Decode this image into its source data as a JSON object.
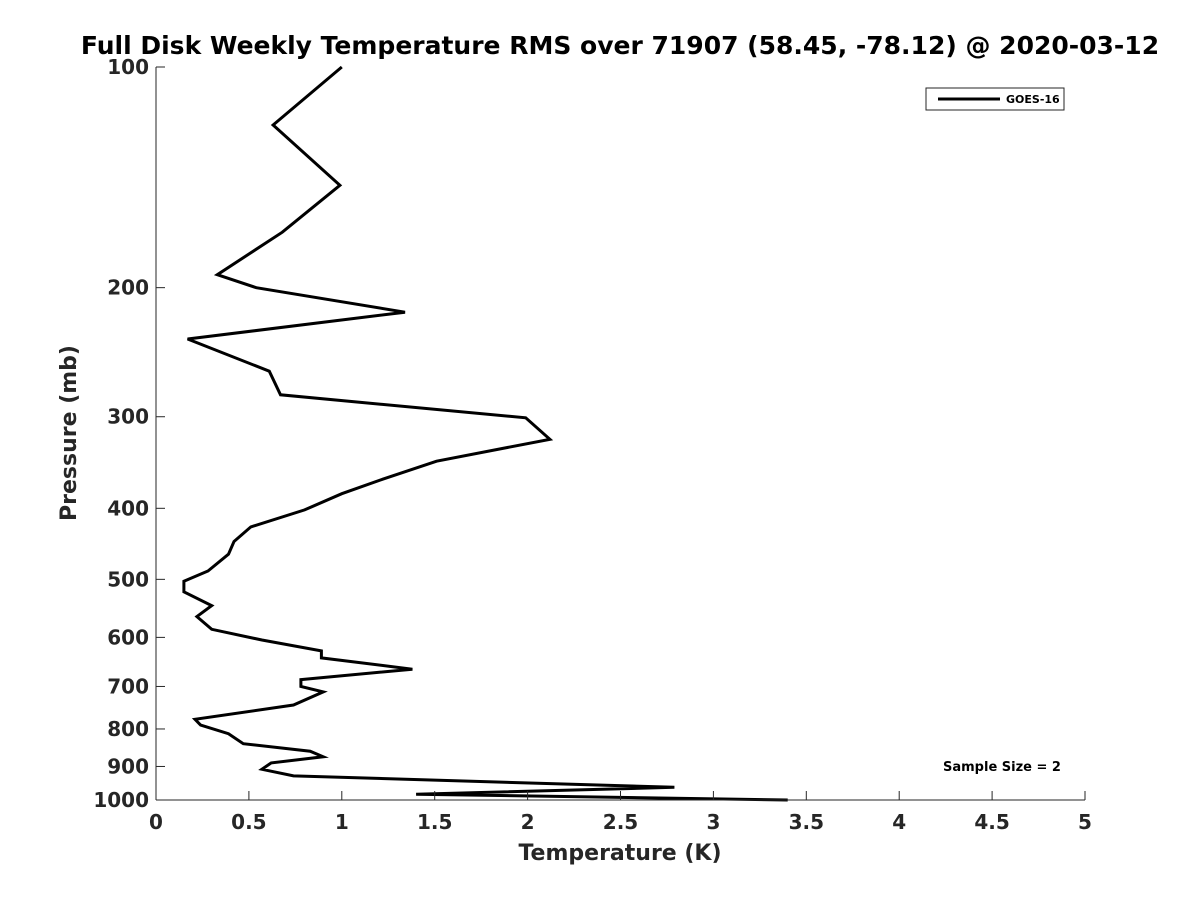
{
  "chart_data": {
    "type": "line",
    "title": "Full Disk Weekly Temperature RMS over 71907 (58.45, -78.12) @ 2020-03-12",
    "xlabel": "Temperature (K)",
    "ylabel": "Pressure (mb)",
    "xlim": [
      0,
      5
    ],
    "ylim": [
      100,
      1000
    ],
    "yscale": "log",
    "y_reversed": true,
    "grid": false,
    "legend_position": "top-right",
    "x_ticks": [
      "0",
      "0.5",
      "1",
      "1.5",
      "2",
      "2.5",
      "3",
      "3.5",
      "4",
      "4.5",
      "5"
    ],
    "y_ticks": [
      "100",
      "200",
      "300",
      "400",
      "500",
      "600",
      "700",
      "800",
      "900",
      "1000"
    ],
    "annotation": "Sample Size = 2",
    "series": [
      {
        "name": "GOES-16",
        "color": "#000000",
        "points": [
          [
            1.0,
            100
          ],
          [
            0.63,
            120
          ],
          [
            0.99,
            145
          ],
          [
            0.68,
            168
          ],
          [
            0.33,
            192
          ],
          [
            0.54,
            200
          ],
          [
            1.34,
            216
          ],
          [
            0.17,
            235
          ],
          [
            0.61,
            260
          ],
          [
            0.67,
            280
          ],
          [
            1.99,
            301
          ],
          [
            2.12,
            322
          ],
          [
            1.51,
            345
          ],
          [
            1.22,
            365
          ],
          [
            1.0,
            382
          ],
          [
            0.8,
            402
          ],
          [
            0.51,
            424
          ],
          [
            0.42,
            444
          ],
          [
            0.39,
            462
          ],
          [
            0.28,
            487
          ],
          [
            0.15,
            503
          ],
          [
            0.15,
            520
          ],
          [
            0.3,
            543
          ],
          [
            0.22,
            562
          ],
          [
            0.3,
            585
          ],
          [
            0.57,
            605
          ],
          [
            0.89,
            626
          ],
          [
            0.89,
            640
          ],
          [
            1.38,
            663
          ],
          [
            0.78,
            685
          ],
          [
            0.78,
            700
          ],
          [
            0.9,
            712
          ],
          [
            0.74,
            742
          ],
          [
            0.21,
            776
          ],
          [
            0.24,
            790
          ],
          [
            0.39,
            812
          ],
          [
            0.47,
            838
          ],
          [
            0.83,
            858
          ],
          [
            0.9,
            873
          ],
          [
            0.62,
            890
          ],
          [
            0.57,
            908
          ],
          [
            0.74,
            927
          ],
          [
            2.79,
            961
          ],
          [
            1.4,
            982
          ],
          [
            3.4,
            1000
          ]
        ]
      }
    ]
  }
}
